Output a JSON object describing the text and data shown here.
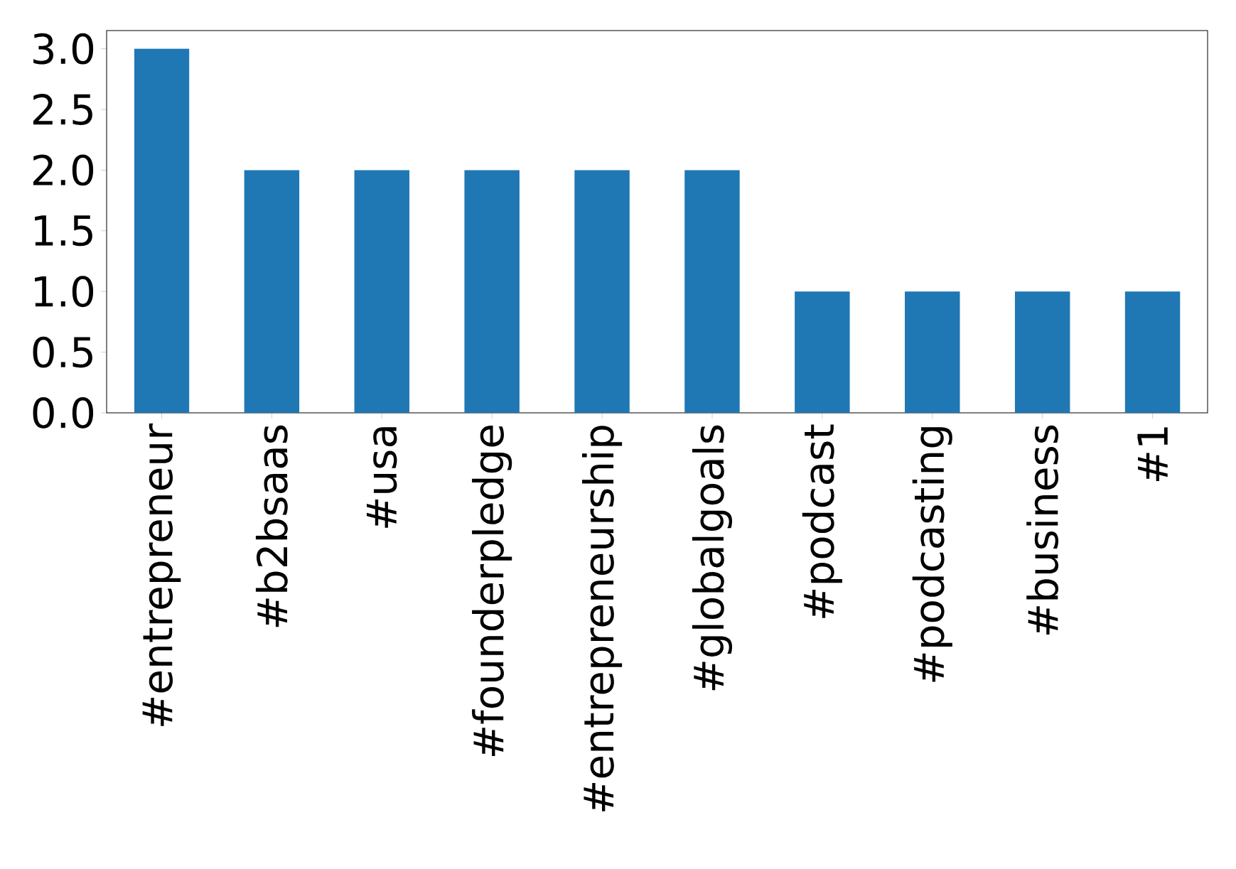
{
  "chart_data": {
    "type": "bar",
    "categories": [
      "#entrepreneur",
      "#b2bsaas",
      "#usa",
      "#founderpledge",
      "#entrepreneurship",
      "#globalgoals",
      "#podcast",
      "#podcasting",
      "#business",
      "#1"
    ],
    "values": [
      3,
      2,
      2,
      2,
      2,
      2,
      1,
      1,
      1,
      1
    ],
    "color": "#1f77b4",
    "ylim": [
      0,
      3.15
    ],
    "yticks": [
      {
        "value": 0,
        "label": "0.0"
      },
      {
        "value": 0.5,
        "label": "0.5"
      },
      {
        "value": 1,
        "label": "1.0"
      },
      {
        "value": 1.5,
        "label": "1.5"
      },
      {
        "value": 2,
        "label": "2.0"
      },
      {
        "value": 2.5,
        "label": "2.5"
      },
      {
        "value": 3,
        "label": "3.0"
      }
    ]
  }
}
